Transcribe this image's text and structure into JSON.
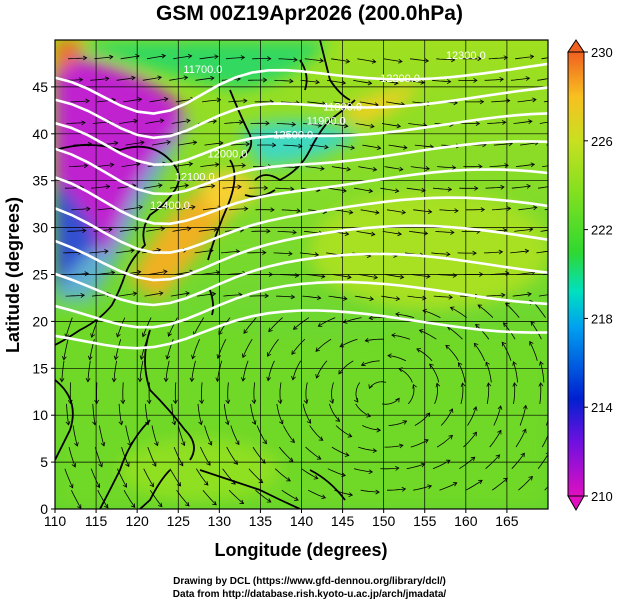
{
  "title": "GSM 00Z19Apr2026 (200.0hPa)",
  "map": {
    "xlabel": "Longitude (degrees)",
    "ylabel": "Latitude  (degrees)",
    "x_ticks": [
      "110",
      "115",
      "120",
      "125",
      "130",
      "135",
      "140",
      "145",
      "150",
      "155",
      "160",
      "165"
    ],
    "y_ticks": [
      "0",
      "5",
      "10",
      "15",
      "20",
      "25",
      "30",
      "35",
      "40",
      "45"
    ],
    "x_range": [
      110,
      170
    ],
    "y_range": [
      0,
      50
    ],
    "grid_step_deg": 5,
    "contour_labels": [
      "11700.0",
      "11800.0",
      "11900.0",
      "12000.0",
      "12100.0",
      "12200.0",
      "12300.0",
      "12400.0",
      "12500.0"
    ]
  },
  "colorbar": {
    "ticks": [
      "230",
      "226",
      "222",
      "218",
      "214",
      "210"
    ],
    "range": [
      210,
      230
    ],
    "colors": [
      "#e010c0",
      "#7010e0",
      "#0020d0",
      "#00a0f0",
      "#00e0c0",
      "#30d830",
      "#80e020",
      "#c8e020",
      "#f8c020",
      "#f06020"
    ]
  },
  "credits": {
    "line1": "Drawing by DCL (https://www.gfd-dennou.org/library/dcl/)",
    "line2": "Data from http://database.rish.kyoto-u.ac.jp/arch/jmadata/"
  }
}
